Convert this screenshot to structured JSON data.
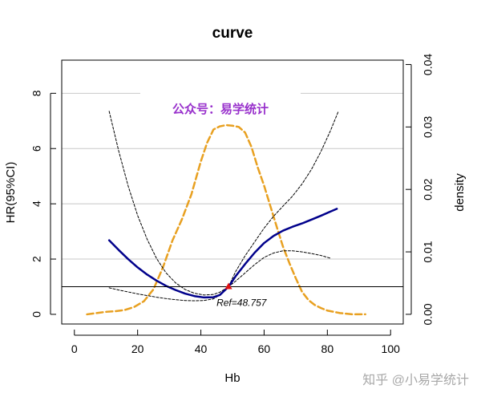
{
  "chart_data": {
    "type": "line",
    "title": "curve",
    "xlabel": "Hb",
    "ylabel": "HR(95%CI)",
    "y2label": "density",
    "xlim": [
      -4,
      104
    ],
    "ylim": [
      -0.35,
      9.2
    ],
    "y2lim": [
      -0.00155,
      0.0407
    ],
    "x_ticks": [
      0,
      20,
      40,
      60,
      80,
      100
    ],
    "y_ticks": [
      0,
      2,
      4,
      6,
      8
    ],
    "y2_ticks": [
      0.0,
      0.01,
      0.02,
      0.03,
      0.04
    ],
    "y2_tick_labels": [
      "0.00",
      "0.01",
      "0.02",
      "0.03",
      "0.04"
    ],
    "grid": {
      "horizontal_at": [
        2,
        4,
        6,
        8
      ],
      "color": "#c8c8c8"
    },
    "reference_line_y": 1,
    "reference_point": {
      "x": 48.757,
      "y": 1,
      "label": "Ref=48.757"
    },
    "watermark_in_plot": "公众号：易学统计",
    "corner_watermark": "知乎 @小易学统计",
    "series": [
      {
        "role": "hr",
        "axis": "left",
        "color": "#00008b",
        "dash": "solid",
        "x": [
          11,
          14,
          17,
          20,
          23,
          26,
          29,
          32,
          35,
          38,
          41,
          44,
          46,
          48.757,
          51,
          54,
          57,
          60,
          63,
          66,
          69,
          72,
          75,
          78,
          81,
          83
        ],
        "y": [
          2.68,
          2.33,
          2.0,
          1.7,
          1.44,
          1.22,
          1.03,
          0.88,
          0.75,
          0.66,
          0.61,
          0.62,
          0.7,
          1.0,
          1.38,
          1.82,
          2.23,
          2.58,
          2.84,
          3.03,
          3.17,
          3.29,
          3.43,
          3.57,
          3.72,
          3.82
        ]
      },
      {
        "role": "upper-ci",
        "axis": "left",
        "color": "#000000",
        "dash": "short",
        "x": [
          11,
          14,
          17,
          20,
          23,
          26,
          29,
          32,
          35,
          38,
          41,
          44,
          46,
          48.757,
          51,
          54,
          57,
          60,
          63,
          66,
          69,
          72,
          75,
          78,
          81,
          83.5
        ],
        "y": [
          7.35,
          5.92,
          4.65,
          3.58,
          2.72,
          2.02,
          1.5,
          1.14,
          0.9,
          0.76,
          0.7,
          0.72,
          0.8,
          1.0,
          1.55,
          2.12,
          2.62,
          3.12,
          3.55,
          3.92,
          4.28,
          4.72,
          5.25,
          5.9,
          6.65,
          7.35
        ]
      },
      {
        "role": "lower-ci",
        "axis": "left",
        "color": "#000000",
        "dash": "short",
        "x": [
          11,
          14,
          17,
          20,
          23,
          26,
          29,
          32,
          35,
          38,
          41,
          44,
          46,
          48.757,
          51,
          54,
          57,
          60,
          63,
          66,
          69,
          72,
          75,
          78,
          81
        ],
        "y": [
          0.96,
          0.88,
          0.81,
          0.74,
          0.68,
          0.62,
          0.57,
          0.53,
          0.5,
          0.49,
          0.5,
          0.56,
          0.7,
          1.0,
          1.2,
          1.5,
          1.8,
          2.06,
          2.22,
          2.3,
          2.3,
          2.26,
          2.2,
          2.13,
          2.03
        ]
      },
      {
        "role": "density",
        "axis": "right",
        "color": "#e8a020",
        "dash": "long",
        "x": [
          4,
          7,
          10,
          13,
          16,
          19,
          22,
          25,
          28,
          31,
          34,
          37,
          40,
          42,
          44,
          46,
          48,
          50,
          52,
          54,
          56,
          58,
          60,
          62,
          64,
          66,
          68,
          70,
          72,
          74,
          76,
          78,
          80,
          82,
          84,
          86,
          88,
          90,
          92
        ],
        "y": [
          0.0,
          0.0002,
          0.0004,
          0.0005,
          0.0007,
          0.0012,
          0.0021,
          0.004,
          0.0075,
          0.0118,
          0.0152,
          0.0192,
          0.0245,
          0.0275,
          0.0296,
          0.0301,
          0.0303,
          0.0302,
          0.03,
          0.0291,
          0.0268,
          0.0235,
          0.0206,
          0.0173,
          0.014,
          0.0108,
          0.0082,
          0.0058,
          0.0036,
          0.0023,
          0.0015,
          0.001,
          0.0006,
          0.0004,
          0.0002,
          0.0001,
          0.0,
          0.0,
          0.0
        ]
      }
    ]
  }
}
